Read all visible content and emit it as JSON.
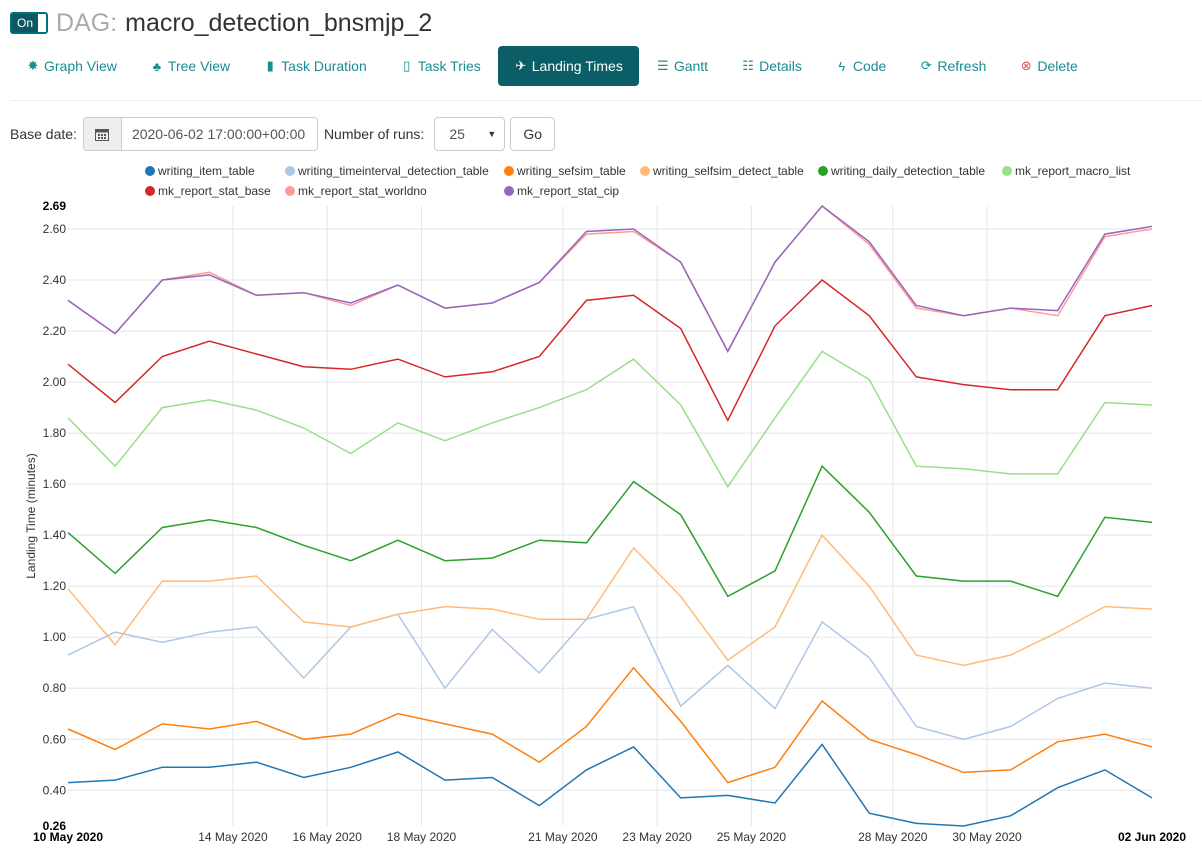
{
  "header": {
    "toggle_label": "On",
    "dag_prefix": "DAG:",
    "dag_id": "macro_detection_bnsmjp_2"
  },
  "tabs": [
    {
      "label": "Graph View",
      "icon": "gear-icon",
      "glyph": "✸",
      "active": false
    },
    {
      "label": "Tree View",
      "icon": "tree-icon",
      "glyph": "♣",
      "active": false
    },
    {
      "label": "Task Duration",
      "icon": "bar-chart-icon",
      "glyph": "▮",
      "active": false
    },
    {
      "label": "Task Tries",
      "icon": "file-icon",
      "glyph": "▯",
      "active": false
    },
    {
      "label": "Landing Times",
      "icon": "plane-icon",
      "glyph": "✈",
      "active": true
    },
    {
      "label": "Gantt",
      "icon": "gantt-icon",
      "glyph": "☰",
      "active": false
    },
    {
      "label": "Details",
      "icon": "list-icon",
      "glyph": "☷",
      "active": false
    },
    {
      "label": "Code",
      "icon": "flash-icon",
      "glyph": "ϟ",
      "active": false
    },
    {
      "label": "Refresh",
      "icon": "refresh-icon",
      "glyph": "⟳",
      "active": false
    },
    {
      "label": "Delete",
      "icon": "remove-circle-icon",
      "glyph": "⊗",
      "active": false
    }
  ],
  "form": {
    "base_date_label": "Base date:",
    "base_date_value": "2020-06-02 17:00:00+00:00",
    "runs_label": "Number of runs:",
    "runs_value": "25",
    "go_label": "Go",
    "calendar_icon": "calendar-icon"
  },
  "chart_data": {
    "type": "line",
    "ylabel": "Landing Time (minutes)",
    "ylim": [
      0.26,
      2.69
    ],
    "yticks": [
      "0.26",
      "0.40",
      "0.60",
      "0.80",
      "1.00",
      "1.20",
      "1.40",
      "1.60",
      "1.80",
      "2.00",
      "2.20",
      "2.40",
      "2.60",
      "2.69"
    ],
    "x_dates": [
      "10 May 2020",
      "11 May 2020",
      "12 May 2020",
      "13 May 2020",
      "14 May 2020",
      "15 May 2020",
      "16 May 2020",
      "17 May 2020",
      "18 May 2020",
      "19 May 2020",
      "20 May 2020",
      "21 May 2020",
      "22 May 2020",
      "23 May 2020",
      "24 May 2020",
      "25 May 2020",
      "26 May 2020",
      "27 May 2020",
      "28 May 2020",
      "29 May 2020",
      "30 May 2020",
      "31 May 2020",
      "01 Jun 2020",
      "02 Jun 2020"
    ],
    "xticks": [
      {
        "index": 0,
        "label": "10 May 2020",
        "bold": true
      },
      {
        "index": 3.5,
        "label": "14 May 2020",
        "bold": false
      },
      {
        "index": 5.5,
        "label": "16 May 2020",
        "bold": false
      },
      {
        "index": 7.5,
        "label": "18 May 2020",
        "bold": false
      },
      {
        "index": 10.5,
        "label": "21 May 2020",
        "bold": false
      },
      {
        "index": 12.5,
        "label": "23 May 2020",
        "bold": false
      },
      {
        "index": 14.5,
        "label": "25 May 2020",
        "bold": false
      },
      {
        "index": 17.5,
        "label": "28 May 2020",
        "bold": false
      },
      {
        "index": 19.5,
        "label": "30 May 2020",
        "bold": false
      },
      {
        "index": 23,
        "label": "02 Jun 2020",
        "bold": true
      }
    ],
    "series": [
      {
        "name": "writing_item_table",
        "color": "#1f77b4",
        "values": [
          0.43,
          0.44,
          0.49,
          0.49,
          0.51,
          0.45,
          0.49,
          0.55,
          0.44,
          0.45,
          0.34,
          0.48,
          0.57,
          0.37,
          0.38,
          0.35,
          0.58,
          0.31,
          0.27,
          0.26,
          0.3,
          0.41,
          0.48,
          0.37
        ]
      },
      {
        "name": "writing_timeinterval_detection_table",
        "color": "#aec7e8",
        "values": [
          0.93,
          1.02,
          0.98,
          1.02,
          1.04,
          0.84,
          1.04,
          1.09,
          0.8,
          1.03,
          0.86,
          1.07,
          1.12,
          0.73,
          0.89,
          0.72,
          1.06,
          0.92,
          0.65,
          0.6,
          0.65,
          0.76,
          0.82,
          0.8
        ]
      },
      {
        "name": "writing_sefsim_table",
        "color": "#ff7f0e",
        "values": [
          0.64,
          0.56,
          0.66,
          0.64,
          0.67,
          0.6,
          0.62,
          0.7,
          0.66,
          0.62,
          0.51,
          0.65,
          0.88,
          0.67,
          0.43,
          0.49,
          0.75,
          0.6,
          0.54,
          0.47,
          0.48,
          0.59,
          0.62,
          0.57
        ]
      },
      {
        "name": "writing_selfsim_detect_table",
        "color": "#ffbb78",
        "values": [
          1.19,
          0.97,
          1.22,
          1.22,
          1.24,
          1.06,
          1.04,
          1.09,
          1.12,
          1.11,
          1.07,
          1.07,
          1.35,
          1.16,
          0.91,
          1.04,
          1.4,
          1.2,
          0.93,
          0.89,
          0.93,
          1.02,
          1.12,
          1.11
        ]
      },
      {
        "name": "writing_daily_detection_table",
        "color": "#2ca02c",
        "values": [
          1.41,
          1.25,
          1.43,
          1.46,
          1.43,
          1.36,
          1.3,
          1.38,
          1.3,
          1.31,
          1.38,
          1.37,
          1.61,
          1.48,
          1.16,
          1.26,
          1.67,
          1.49,
          1.24,
          1.22,
          1.22,
          1.16,
          1.47,
          1.45
        ]
      },
      {
        "name": "mk_report_macro_list",
        "color": "#98df8a",
        "values": [
          1.86,
          1.67,
          1.9,
          1.93,
          1.89,
          1.82,
          1.72,
          1.84,
          1.77,
          1.84,
          1.9,
          1.97,
          2.09,
          1.91,
          1.59,
          1.86,
          2.12,
          2.01,
          1.67,
          1.66,
          1.64,
          1.64,
          1.92,
          1.91
        ]
      },
      {
        "name": "mk_report_stat_base",
        "color": "#d62728",
        "values": [
          2.07,
          1.92,
          2.1,
          2.16,
          2.11,
          2.06,
          2.05,
          2.09,
          2.02,
          2.04,
          2.1,
          2.32,
          2.34,
          2.21,
          1.85,
          2.22,
          2.4,
          2.26,
          2.02,
          1.99,
          1.97,
          1.97,
          2.26,
          2.3
        ]
      },
      {
        "name": "mk_report_stat_worldno",
        "color": "#ff9896",
        "values": [
          2.32,
          2.19,
          2.4,
          2.43,
          2.34,
          2.35,
          2.3,
          2.38,
          2.29,
          2.31,
          2.39,
          2.58,
          2.59,
          2.47,
          2.12,
          2.47,
          2.69,
          2.54,
          2.29,
          2.26,
          2.29,
          2.26,
          2.57,
          2.6
        ]
      },
      {
        "name": "mk_report_stat_cip",
        "color": "#9467bd",
        "values": [
          2.32,
          2.19,
          2.4,
          2.42,
          2.34,
          2.35,
          2.31,
          2.38,
          2.29,
          2.31,
          2.39,
          2.59,
          2.6,
          2.47,
          2.12,
          2.47,
          2.69,
          2.55,
          2.3,
          2.26,
          2.29,
          2.28,
          2.58,
          2.61
        ]
      }
    ]
  }
}
